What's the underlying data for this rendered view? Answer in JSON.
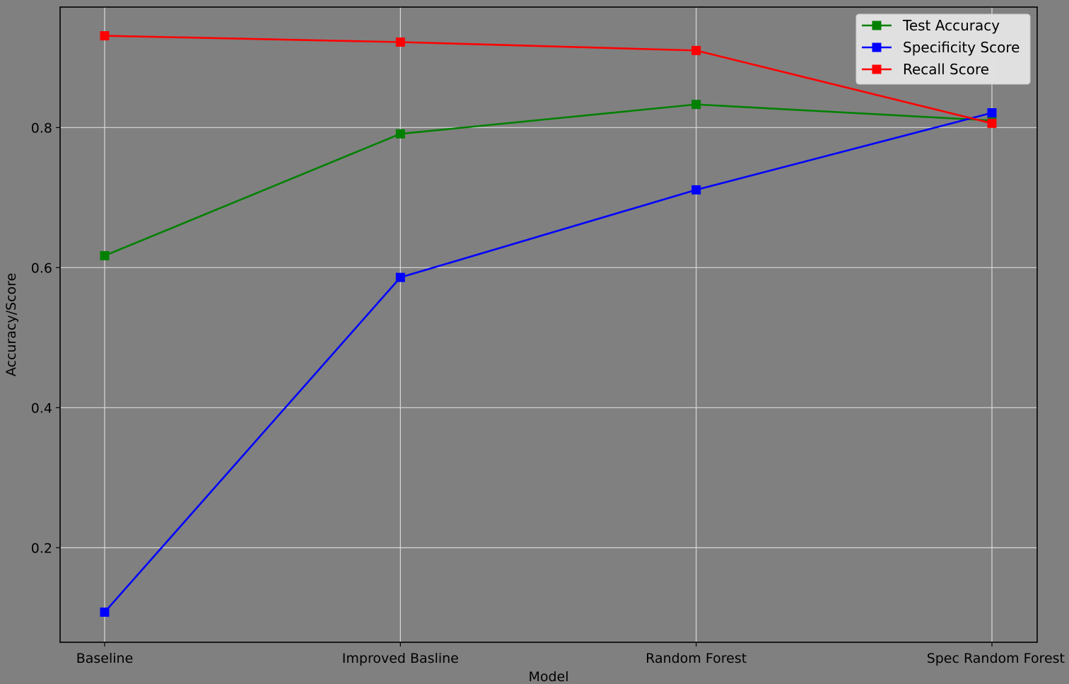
{
  "chart_data": {
    "type": "line",
    "title": "",
    "xlabel": "Model",
    "ylabel": "Accuracy/Score",
    "categories": [
      "Baseline",
      "Improved Basline",
      "Random Forest",
      "Spec Random Forest"
    ],
    "ylim": [
      0.065,
      0.972
    ],
    "yticks": [
      0.2,
      0.4,
      0.6,
      0.8
    ],
    "grid": true,
    "legend_position": "top-right",
    "marker": "square",
    "background_color": "#808080",
    "series": [
      {
        "name": "Test Accuracy",
        "color": "#008000",
        "values": [
          0.617,
          0.791,
          0.833,
          0.81
        ]
      },
      {
        "name": "Specificity Score",
        "color": "#0000ff",
        "values": [
          0.108,
          0.586,
          0.711,
          0.821
        ]
      },
      {
        "name": "Recall Score",
        "color": "#ff0000",
        "values": [
          0.931,
          0.922,
          0.91,
          0.806
        ]
      }
    ]
  }
}
